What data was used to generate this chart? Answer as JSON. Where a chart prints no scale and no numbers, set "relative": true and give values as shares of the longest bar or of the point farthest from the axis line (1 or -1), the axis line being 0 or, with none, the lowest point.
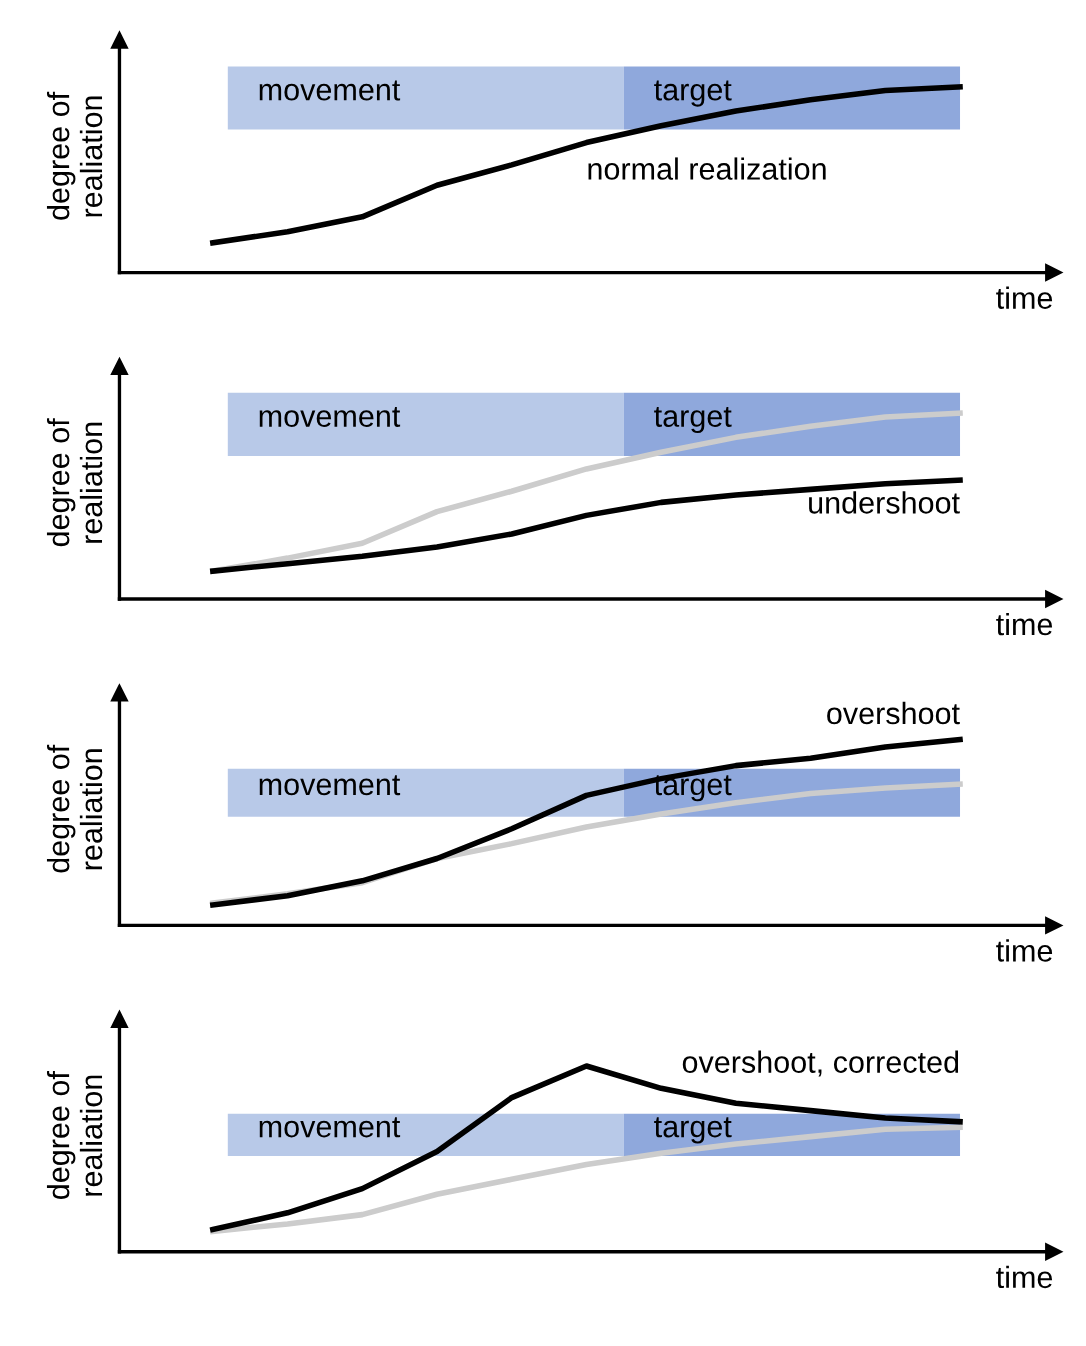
{
  "chart_data": [
    {
      "type": "line",
      "relative": true,
      "xlabel": "time",
      "ylabel": "degree of\nrealiation",
      "legend": false,
      "annotations": [
        "movement",
        "target"
      ],
      "categories": [
        null,
        null,
        null,
        null,
        null,
        null,
        null,
        null,
        null,
        null,
        null
      ],
      "series": [
        {
          "name": "normal realization",
          "color": "#000000",
          "values": [
            0.16,
            0.22,
            0.3,
            0.47,
            0.58,
            0.7,
            0.79,
            0.87,
            0.93,
            0.98,
            1.0
          ]
        }
      ]
    },
    {
      "type": "line",
      "relative": true,
      "xlabel": "time",
      "ylabel": "degree of\nrealiation",
      "legend": false,
      "annotations": [
        "movement",
        "target"
      ],
      "categories": [
        null,
        null,
        null,
        null,
        null,
        null,
        null,
        null,
        null,
        null,
        null
      ],
      "series": [
        {
          "color": "#cccccc",
          "values": [
            0.15,
            0.22,
            0.3,
            0.47,
            0.58,
            0.7,
            0.79,
            0.87,
            0.93,
            0.98,
            1.0
          ]
        },
        {
          "name": "undershoot",
          "color": "#000000",
          "values": [
            0.15,
            0.19,
            0.23,
            0.28,
            0.35,
            0.45,
            0.52,
            0.56,
            0.59,
            0.62,
            0.64
          ]
        }
      ]
    },
    {
      "type": "line",
      "relative": true,
      "xlabel": "time",
      "ylabel": "degree of\nrealiation",
      "legend": false,
      "annotations": [
        "movement",
        "target"
      ],
      "categories": [
        null,
        null,
        null,
        null,
        null,
        null,
        null,
        null,
        null,
        null,
        null
      ],
      "series": [
        {
          "color": "#cccccc",
          "values": [
            0.12,
            0.17,
            0.23,
            0.36,
            0.44,
            0.53,
            0.6,
            0.66,
            0.71,
            0.74,
            0.76
          ]
        },
        {
          "name": "overshoot",
          "color": "#000000",
          "values": [
            0.11,
            0.16,
            0.24,
            0.36,
            0.52,
            0.7,
            0.79,
            0.86,
            0.9,
            0.96,
            1.0
          ]
        }
      ]
    },
    {
      "type": "line",
      "relative": true,
      "xlabel": "time",
      "ylabel": "degree of\nrealiation",
      "legend": false,
      "annotations": [
        "movement",
        "target"
      ],
      "categories": [
        null,
        null,
        null,
        null,
        null,
        null,
        null,
        null,
        null,
        null,
        null
      ],
      "series": [
        {
          "color": "#cccccc",
          "values": [
            0.11,
            0.15,
            0.2,
            0.31,
            0.39,
            0.47,
            0.53,
            0.58,
            0.62,
            0.66,
            0.67
          ]
        },
        {
          "name": "overshoot, corrected",
          "color": "#000000",
          "values": [
            0.12,
            0.21,
            0.34,
            0.54,
            0.83,
            1.0,
            0.88,
            0.8,
            0.76,
            0.72,
            0.7
          ]
        }
      ]
    }
  ]
}
